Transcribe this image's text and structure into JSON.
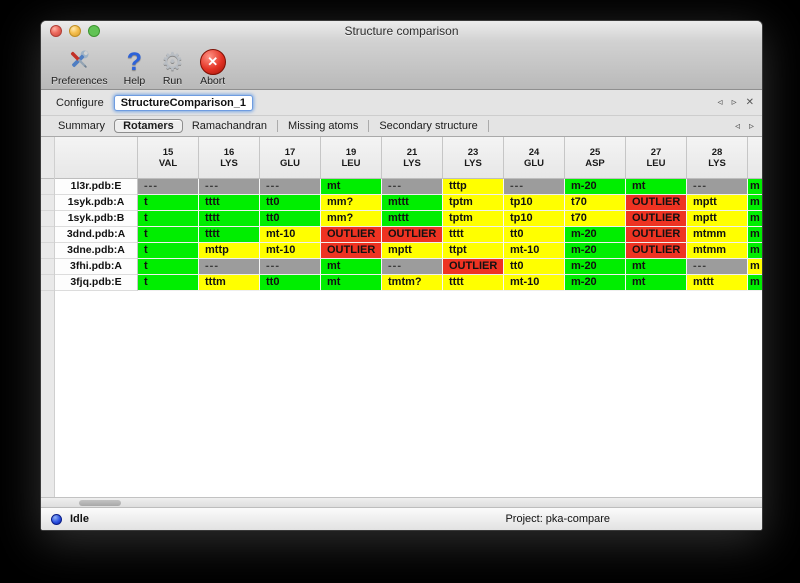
{
  "window": {
    "title": "Structure comparison"
  },
  "toolbar": {
    "items": [
      {
        "label": "Preferences",
        "icon": "tools-icon"
      },
      {
        "label": "Help",
        "icon": "help-icon"
      },
      {
        "label": "Run",
        "icon": "gear-icon"
      },
      {
        "label": "Abort",
        "icon": "abort-icon"
      }
    ]
  },
  "configure": {
    "label": "Configure",
    "value": "StructureComparison_1"
  },
  "icons": {
    "prev": "◃",
    "next": "▹",
    "close": "✕",
    "abort_glyph": "✕",
    "help_glyph": "?",
    "gear_glyph": "⚙"
  },
  "tabs": {
    "items": [
      "Summary",
      "Rotamers",
      "Ramachandran",
      "Missing atoms",
      "Secondary structure"
    ],
    "selected": "Rotamers"
  },
  "colors": {
    "good": "#00ee00",
    "warn": "#ffff00",
    "outlier": "#ee3322",
    "missing": "#9c9c9c"
  },
  "table": {
    "columns": [
      {
        "num": "15",
        "res": "VAL"
      },
      {
        "num": "16",
        "res": "LYS"
      },
      {
        "num": "17",
        "res": "GLU"
      },
      {
        "num": "19",
        "res": "LEU"
      },
      {
        "num": "21",
        "res": "LYS"
      },
      {
        "num": "23",
        "res": "LYS"
      },
      {
        "num": "24",
        "res": "GLU"
      },
      {
        "num": "25",
        "res": "ASP"
      },
      {
        "num": "27",
        "res": "LEU"
      },
      {
        "num": "28",
        "res": "LYS"
      }
    ],
    "rows": [
      {
        "label": "1l3r.pdb:E",
        "cells": [
          {
            "text": "---",
            "status": "missing"
          },
          {
            "text": "---",
            "status": "missing"
          },
          {
            "text": "---",
            "status": "missing"
          },
          {
            "text": "mt",
            "status": "good"
          },
          {
            "text": "---",
            "status": "missing"
          },
          {
            "text": "tttp",
            "status": "warn"
          },
          {
            "text": "---",
            "status": "missing"
          },
          {
            "text": "m-20",
            "status": "good"
          },
          {
            "text": "mt",
            "status": "good"
          },
          {
            "text": "---",
            "status": "missing"
          }
        ],
        "partial": {
          "text": "m",
          "status": "good"
        }
      },
      {
        "label": "1syk.pdb:A",
        "cells": [
          {
            "text": "t",
            "status": "good"
          },
          {
            "text": "tttt",
            "status": "good"
          },
          {
            "text": "tt0",
            "status": "good"
          },
          {
            "text": "mm?",
            "status": "warn"
          },
          {
            "text": "mttt",
            "status": "good"
          },
          {
            "text": "tptm",
            "status": "warn"
          },
          {
            "text": "tp10",
            "status": "warn"
          },
          {
            "text": "t70",
            "status": "warn"
          },
          {
            "text": "OUTLIER",
            "status": "outlier"
          },
          {
            "text": "mptt",
            "status": "warn"
          }
        ],
        "partial": {
          "text": "m",
          "status": "good"
        }
      },
      {
        "label": "1syk.pdb:B",
        "cells": [
          {
            "text": "t",
            "status": "good"
          },
          {
            "text": "tttt",
            "status": "good"
          },
          {
            "text": "tt0",
            "status": "good"
          },
          {
            "text": "mm?",
            "status": "warn"
          },
          {
            "text": "mttt",
            "status": "good"
          },
          {
            "text": "tptm",
            "status": "warn"
          },
          {
            "text": "tp10",
            "status": "warn"
          },
          {
            "text": "t70",
            "status": "warn"
          },
          {
            "text": "OUTLIER",
            "status": "outlier"
          },
          {
            "text": "mptt",
            "status": "warn"
          }
        ],
        "partial": {
          "text": "m",
          "status": "good"
        }
      },
      {
        "label": "3dnd.pdb:A",
        "cells": [
          {
            "text": "t",
            "status": "good"
          },
          {
            "text": "tttt",
            "status": "good"
          },
          {
            "text": "mt-10",
            "status": "warn"
          },
          {
            "text": "OUTLIER",
            "status": "outlier"
          },
          {
            "text": "OUTLIER",
            "status": "outlier"
          },
          {
            "text": "tttt",
            "status": "warn"
          },
          {
            "text": "tt0",
            "status": "warn"
          },
          {
            "text": "m-20",
            "status": "good"
          },
          {
            "text": "OUTLIER",
            "status": "outlier"
          },
          {
            "text": "mtmm",
            "status": "warn"
          }
        ],
        "partial": {
          "text": "m",
          "status": "good"
        }
      },
      {
        "label": "3dne.pdb:A",
        "cells": [
          {
            "text": "t",
            "status": "good"
          },
          {
            "text": "mttp",
            "status": "warn"
          },
          {
            "text": "mt-10",
            "status": "warn"
          },
          {
            "text": "OUTLIER",
            "status": "outlier"
          },
          {
            "text": "mptt",
            "status": "warn"
          },
          {
            "text": "ttpt",
            "status": "warn"
          },
          {
            "text": "mt-10",
            "status": "warn"
          },
          {
            "text": "m-20",
            "status": "good"
          },
          {
            "text": "OUTLIER",
            "status": "outlier"
          },
          {
            "text": "mtmm",
            "status": "warn"
          }
        ],
        "partial": {
          "text": "m",
          "status": "good"
        }
      },
      {
        "label": "3fhi.pdb:A",
        "cells": [
          {
            "text": "t",
            "status": "good"
          },
          {
            "text": "---",
            "status": "missing"
          },
          {
            "text": "---",
            "status": "missing"
          },
          {
            "text": "mt",
            "status": "good"
          },
          {
            "text": "---",
            "status": "missing"
          },
          {
            "text": "OUTLIER",
            "status": "outlier"
          },
          {
            "text": "tt0",
            "status": "warn"
          },
          {
            "text": "m-20",
            "status": "good"
          },
          {
            "text": "mt",
            "status": "good"
          },
          {
            "text": "---",
            "status": "missing"
          }
        ],
        "partial": {
          "text": "m",
          "status": "warn"
        }
      },
      {
        "label": "3fjq.pdb:E",
        "cells": [
          {
            "text": "t",
            "status": "good"
          },
          {
            "text": "tttm",
            "status": "warn"
          },
          {
            "text": "tt0",
            "status": "good"
          },
          {
            "text": "mt",
            "status": "good"
          },
          {
            "text": "tmtm?",
            "status": "warn"
          },
          {
            "text": "tttt",
            "status": "warn"
          },
          {
            "text": "mt-10",
            "status": "warn"
          },
          {
            "text": "m-20",
            "status": "good"
          },
          {
            "text": "mt",
            "status": "good"
          },
          {
            "text": "mttt",
            "status": "warn"
          }
        ],
        "partial": {
          "text": "m",
          "status": "good"
        }
      }
    ]
  },
  "status_bar": {
    "state": "Idle",
    "project": "Project: pka-compare"
  }
}
